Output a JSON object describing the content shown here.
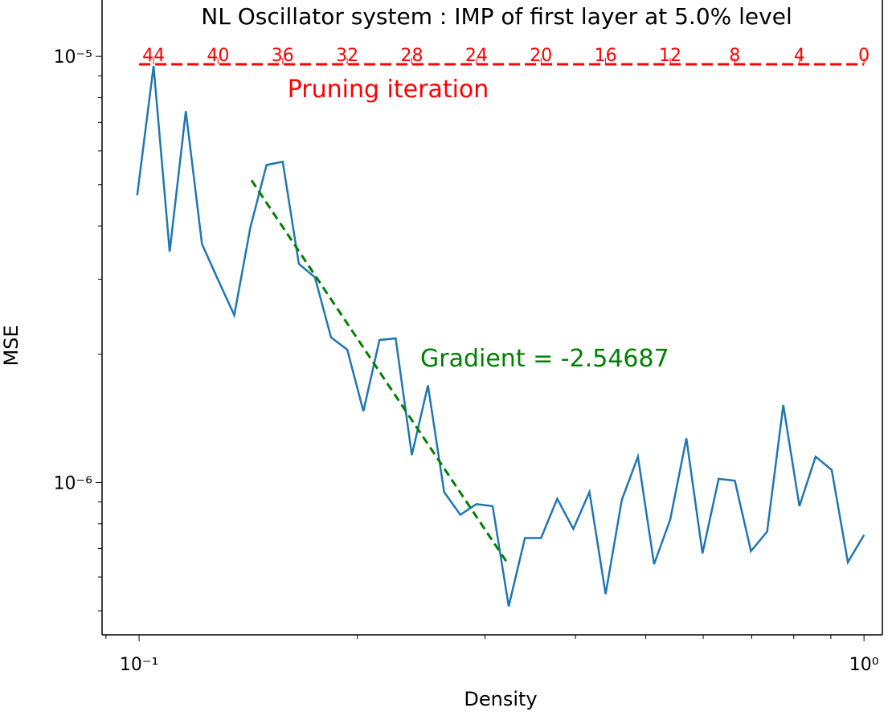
{
  "chart_data": {
    "type": "line",
    "title": "NL Oscillator system : IMP of first layer at 5.0% level",
    "x_label": "Density",
    "y_label": "MSE",
    "xscale": "log",
    "yscale": "log",
    "xlim": [
      0.0889,
      1.06
    ],
    "ylim": [
      4.39e-07,
      1.14e-05
    ],
    "xticks": [
      {
        "value": 0.1,
        "label": "10⁻¹"
      },
      {
        "value": 1,
        "label": "10⁰"
      }
    ],
    "yticks": [
      {
        "value": 1e-06,
        "label": "10⁻⁶"
      },
      {
        "value": 1e-05,
        "label": "10⁻⁵"
      }
    ],
    "top_axis": {
      "label": "Pruning iteration",
      "color": "#ff0000",
      "ticks": [
        {
          "value": 0.1047,
          "label": "44"
        },
        {
          "value": 0.1285,
          "label": "40"
        },
        {
          "value": 0.1578,
          "label": "36"
        },
        {
          "value": 0.1937,
          "label": "32"
        },
        {
          "value": 0.2378,
          "label": "28"
        },
        {
          "value": 0.292,
          "label": "24"
        },
        {
          "value": 0.3585,
          "label": "20"
        },
        {
          "value": 0.4401,
          "label": "16"
        },
        {
          "value": 0.5404,
          "label": "12"
        },
        {
          "value": 0.6634,
          "label": "8"
        },
        {
          "value": 0.8145,
          "label": "4"
        },
        {
          "value": 1,
          "label": "0"
        }
      ]
    },
    "series": [
      {
        "color": "#1f77b4",
        "x": [
          0.0994,
          0.1047,
          0.1102,
          0.116,
          0.1221,
          0.1285,
          0.1353,
          0.1424,
          0.1499,
          0.1578,
          0.1661,
          0.1748,
          0.184,
          0.1937,
          0.2039,
          0.2146,
          0.2259,
          0.2378,
          0.2503,
          0.2635,
          0.2774,
          0.292,
          0.3074,
          0.3235,
          0.3406,
          0.3585,
          0.3774,
          0.3972,
          0.4181,
          0.4401,
          0.4633,
          0.4877,
          0.5133,
          0.5404,
          0.5688,
          0.5987,
          0.6302,
          0.6634,
          0.6983,
          0.7351,
          0.7738,
          0.8145,
          0.8574,
          0.9025,
          0.95,
          1
        ],
        "values": [
          4.72e-06,
          9.5e-06,
          3.48e-06,
          7.44e-06,
          3.63e-06,
          2.99e-06,
          2.47e-06,
          3.97e-06,
          5.56e-06,
          5.66e-06,
          3.26e-06,
          3.03e-06,
          2.19e-06,
          2.05e-06,
          1.47e-06,
          2.16e-06,
          2.18e-06,
          1.16e-06,
          1.69e-06,
          9.5e-07,
          8.4e-07,
          8.9e-07,
          8.8e-07,
          5.12e-07,
          7.41e-07,
          7.41e-07,
          9.16e-07,
          7.78e-07,
          9.5e-07,
          5.47e-07,
          9.1e-07,
          1.15e-06,
          6.43e-07,
          8.19e-07,
          1.27e-06,
          6.82e-07,
          1.02e-06,
          1.01e-06,
          6.9e-07,
          7.67e-07,
          1.52e-06,
          8.8e-07,
          1.15e-06,
          1.07e-06,
          6.5e-07,
          7.53e-07
        ]
      },
      {
        "color": "#008000",
        "dashed": true,
        "x": [
          0.1429,
          0.3236
        ],
        "values": [
          5.12e-06,
          6.4e-07
        ]
      }
    ],
    "annotation": {
      "text": "Gradient = -2.54687",
      "color": "#008000"
    }
  }
}
